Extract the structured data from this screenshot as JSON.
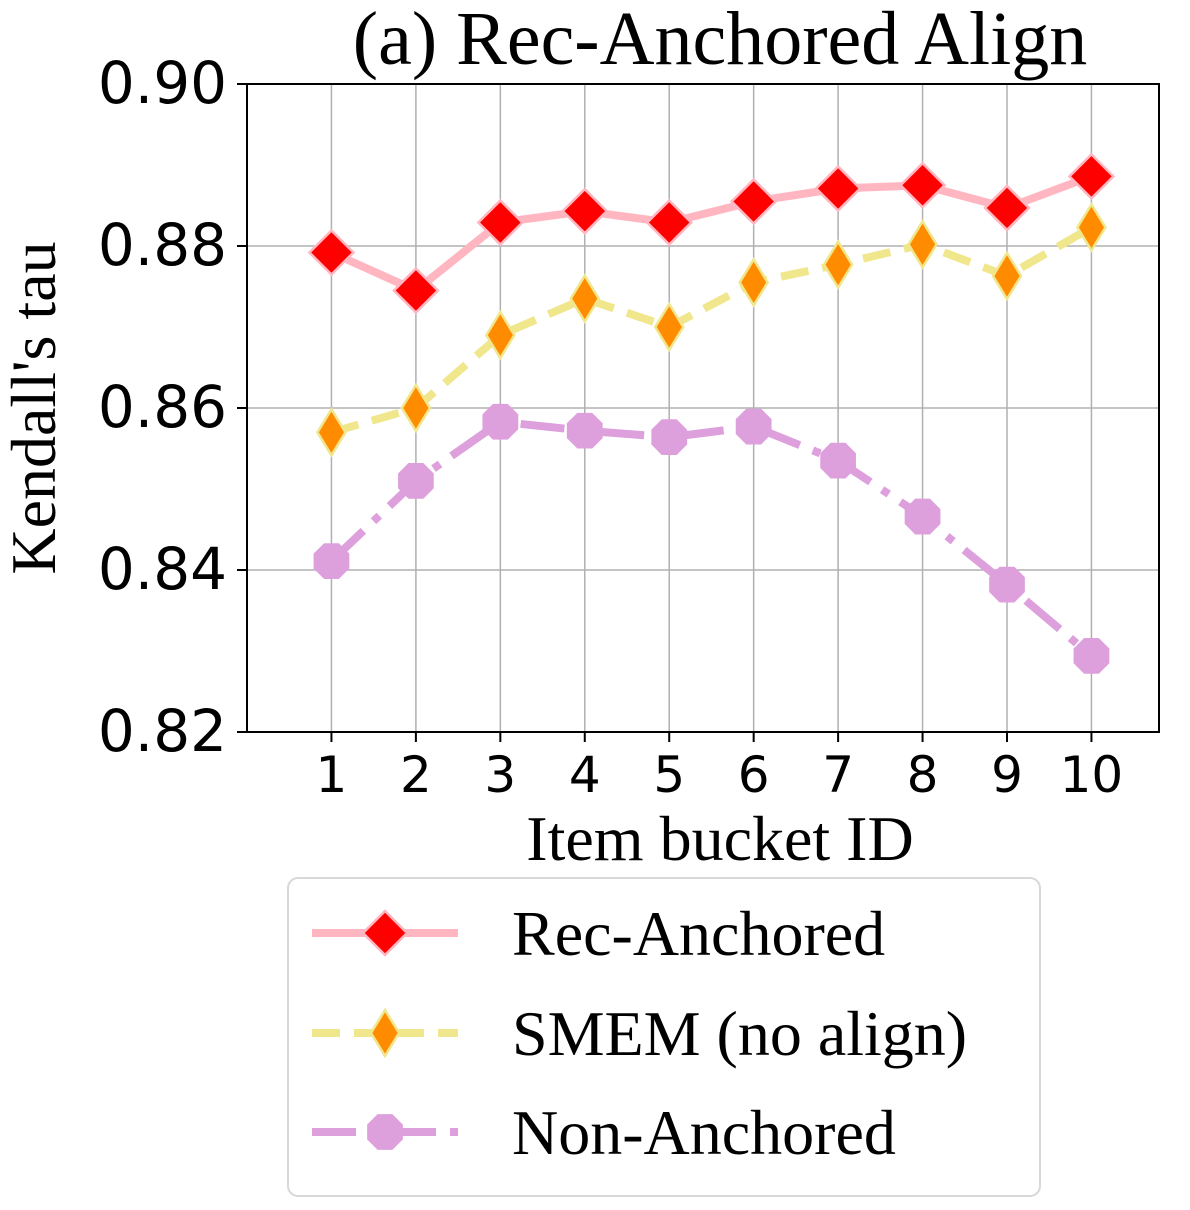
{
  "chart_data": {
    "type": "line",
    "title": "(a) Rec-Anchored Align",
    "xlabel": "Item bucket ID",
    "ylabel": "Kendall's tau",
    "x": [
      1,
      2,
      3,
      4,
      5,
      6,
      7,
      8,
      9,
      10
    ],
    "xticks": [
      "1",
      "2",
      "3",
      "4",
      "5",
      "6",
      "7",
      "8",
      "9",
      "10"
    ],
    "yticks": [
      "0.82",
      "0.84",
      "0.86",
      "0.88",
      "0.90"
    ],
    "ytick_values": [
      0.82,
      0.84,
      0.86,
      0.88,
      0.9
    ],
    "xlim": [
      0.0,
      10.8
    ],
    "ylim": [
      0.82,
      0.9
    ],
    "grid": true,
    "legend_position": "bottom-center",
    "series": [
      {
        "name": "Rec-Anchored",
        "values": [
          0.8792,
          0.8745,
          0.8829,
          0.8843,
          0.8829,
          0.8855,
          0.8871,
          0.8875,
          0.8847,
          0.8886
        ],
        "line_color": "#ffb6c1",
        "line_style": "solid",
        "marker": "diamond",
        "marker_fill": "#ff0000",
        "marker_edge": "#ffb6c1"
      },
      {
        "name": "SMEM (no align)",
        "values": [
          0.857,
          0.86,
          0.869,
          0.8735,
          0.87,
          0.8755,
          0.8777,
          0.8802,
          0.8763,
          0.8823
        ],
        "line_color": "#f0e68c",
        "line_style": "dashed",
        "marker": "thin_diamond",
        "marker_fill": "#ff8c00",
        "marker_edge": "#f0e68c"
      },
      {
        "name": "Non-Anchored",
        "values": [
          0.8411,
          0.851,
          0.8583,
          0.8572,
          0.8564,
          0.8577,
          0.8535,
          0.8466,
          0.8382,
          0.8294
        ],
        "line_color": "#dda0dd",
        "line_style": "dashdot",
        "marker": "octagon",
        "marker_fill": "#dda0dd",
        "marker_edge": "#dda0dd"
      }
    ]
  }
}
